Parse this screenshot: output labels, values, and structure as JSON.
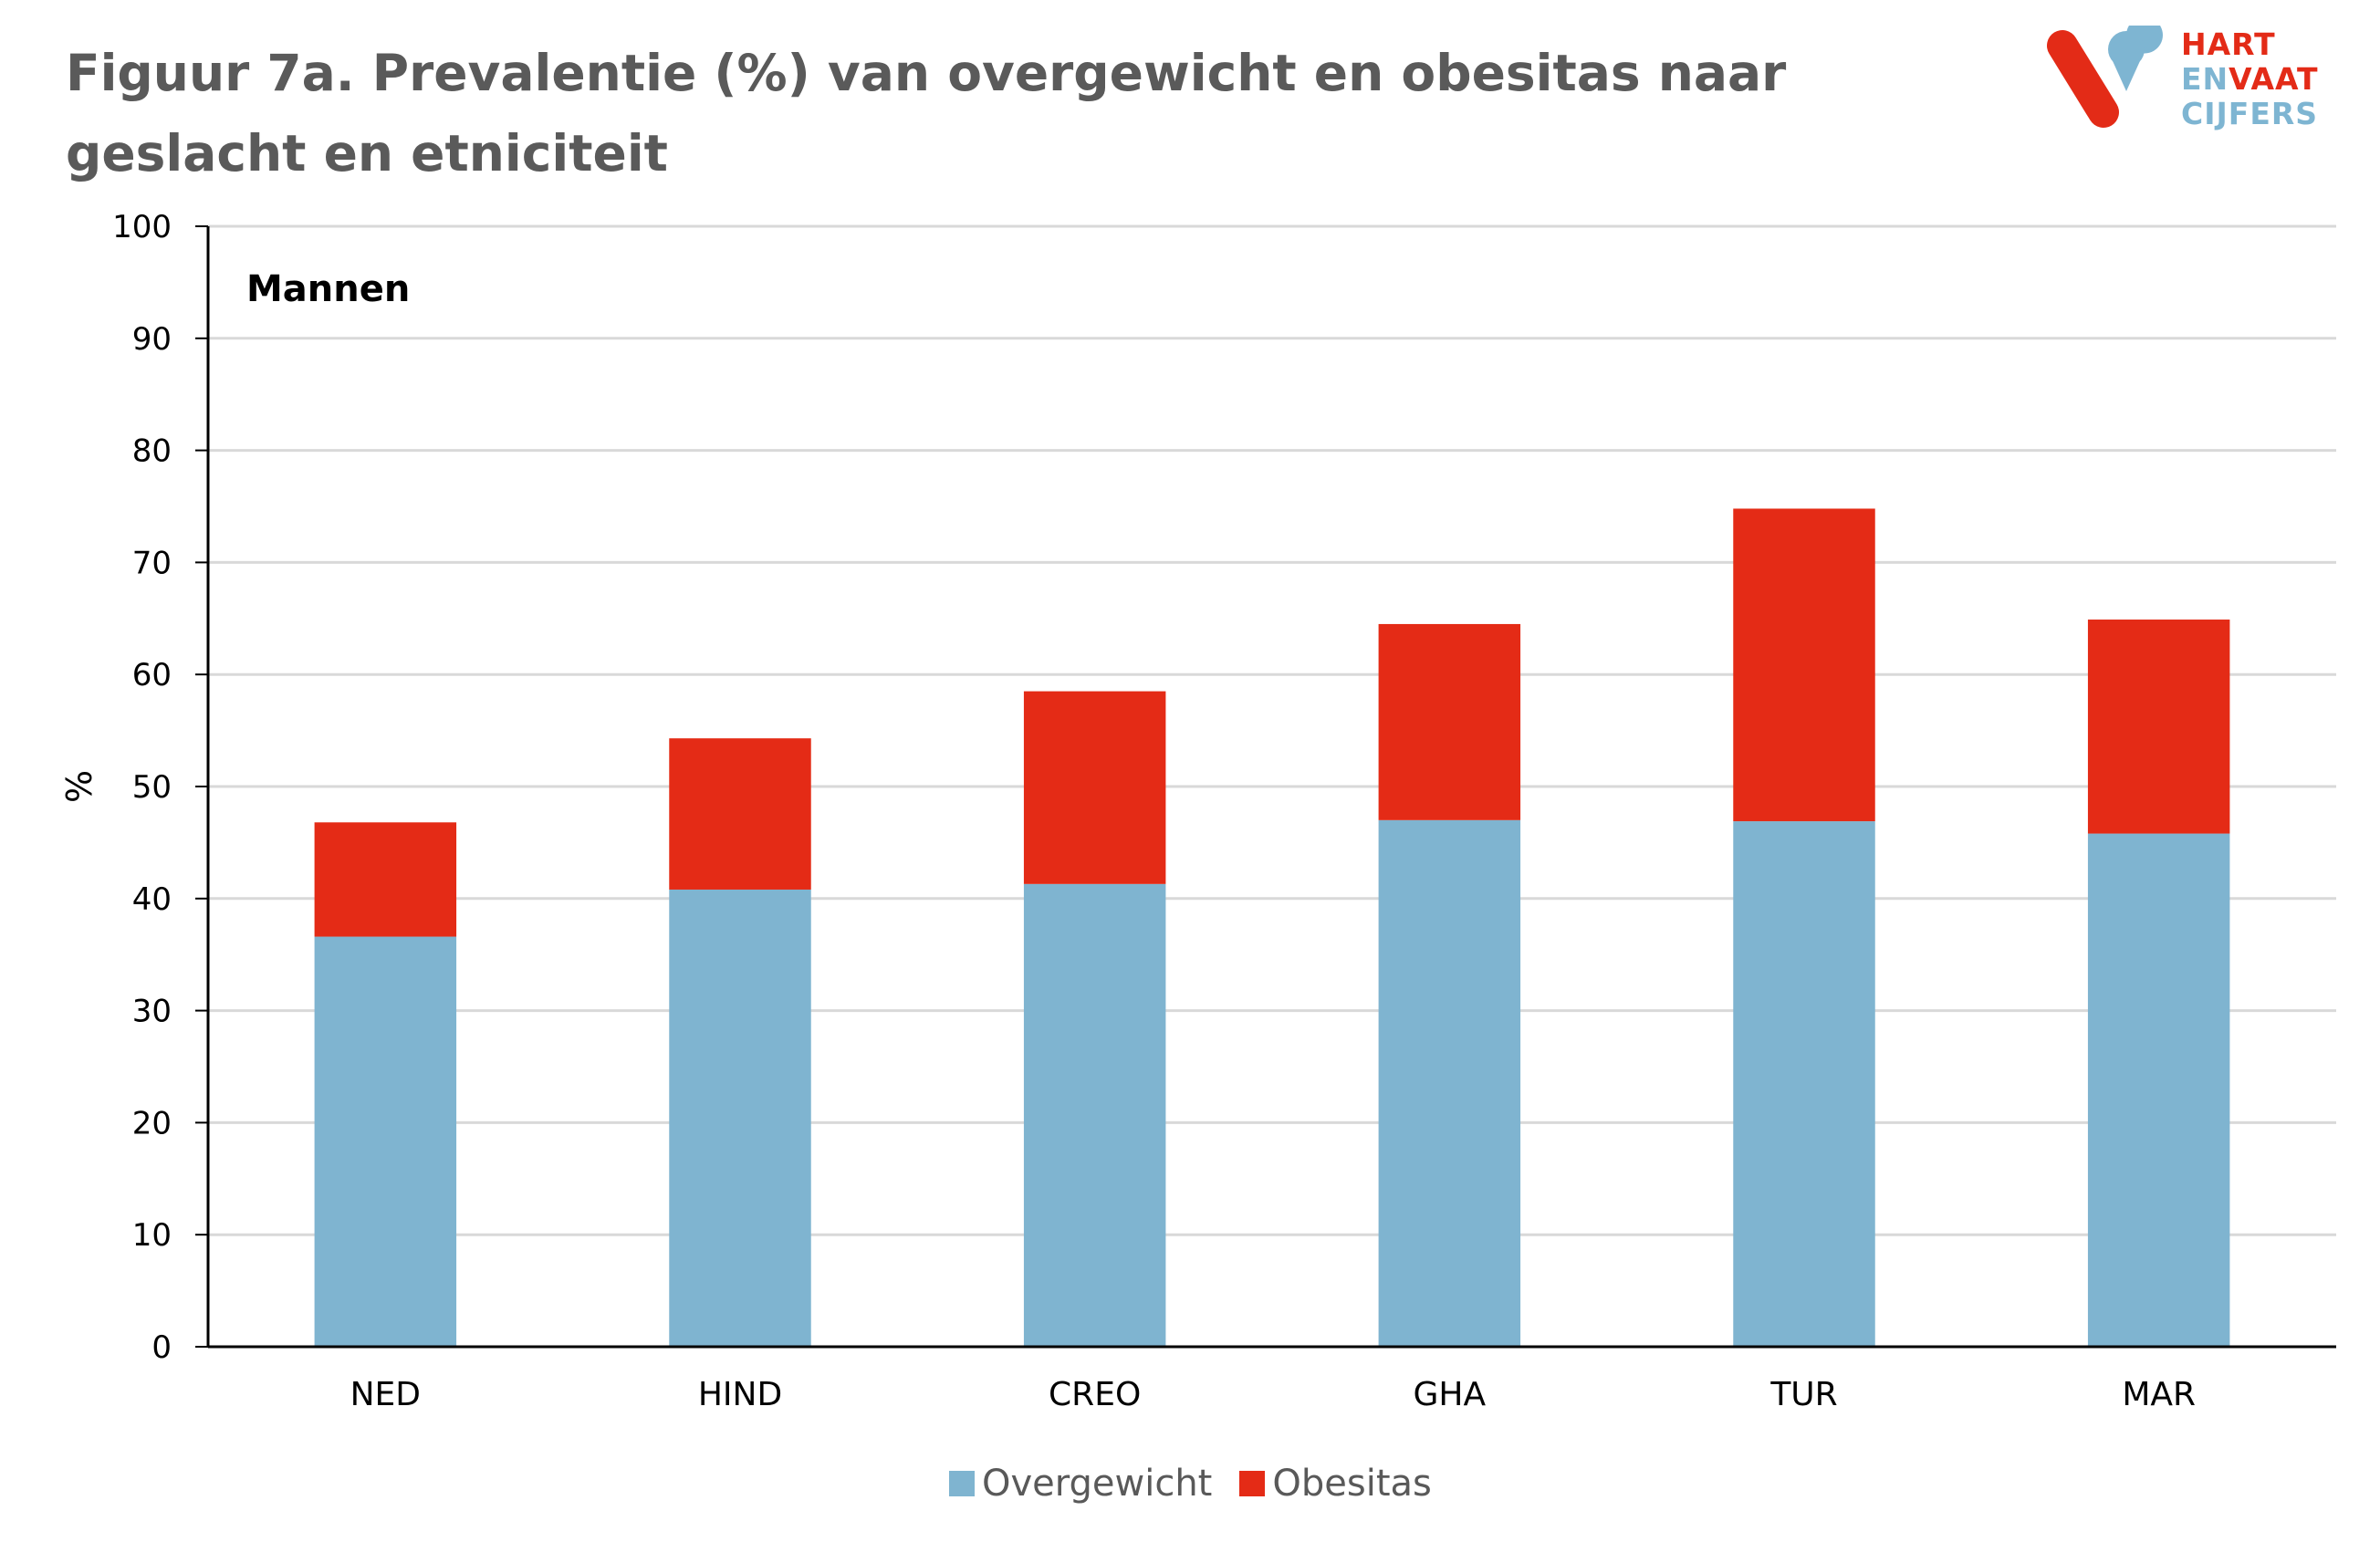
{
  "figure": {
    "title": "Figuur 7a. Prevalentie (%) van overgewicht en obesitas naar geslacht en etniciteit"
  },
  "logo": {
    "line1": "HART",
    "line2_part1": "EN",
    "line2_part2": "VAAT",
    "line3": "CIJFERS",
    "colors": {
      "red": "#e32b17",
      "blue": "#7eb5d2"
    }
  },
  "chart_data": {
    "type": "bar",
    "stacked": true,
    "panel_label": "Mannen",
    "categories": [
      "NED",
      "HIND",
      "CREO",
      "GHA",
      "TUR",
      "MAR"
    ],
    "series": [
      {
        "name": "Overgewicht",
        "color": "#7fb4d0",
        "values": [
          36.6,
          40.8,
          41.3,
          47.0,
          46.9,
          45.8
        ]
      },
      {
        "name": "Obesitas",
        "color": "#e42b16",
        "values": [
          10.2,
          13.5,
          17.2,
          17.5,
          27.9,
          19.1
        ]
      }
    ],
    "ylabel": "%",
    "xlabel": "",
    "ylim": [
      0,
      100
    ],
    "yticks": [
      0,
      10,
      20,
      30,
      40,
      50,
      60,
      70,
      80,
      90,
      100
    ],
    "grid": true,
    "legend_position": "bottom"
  }
}
